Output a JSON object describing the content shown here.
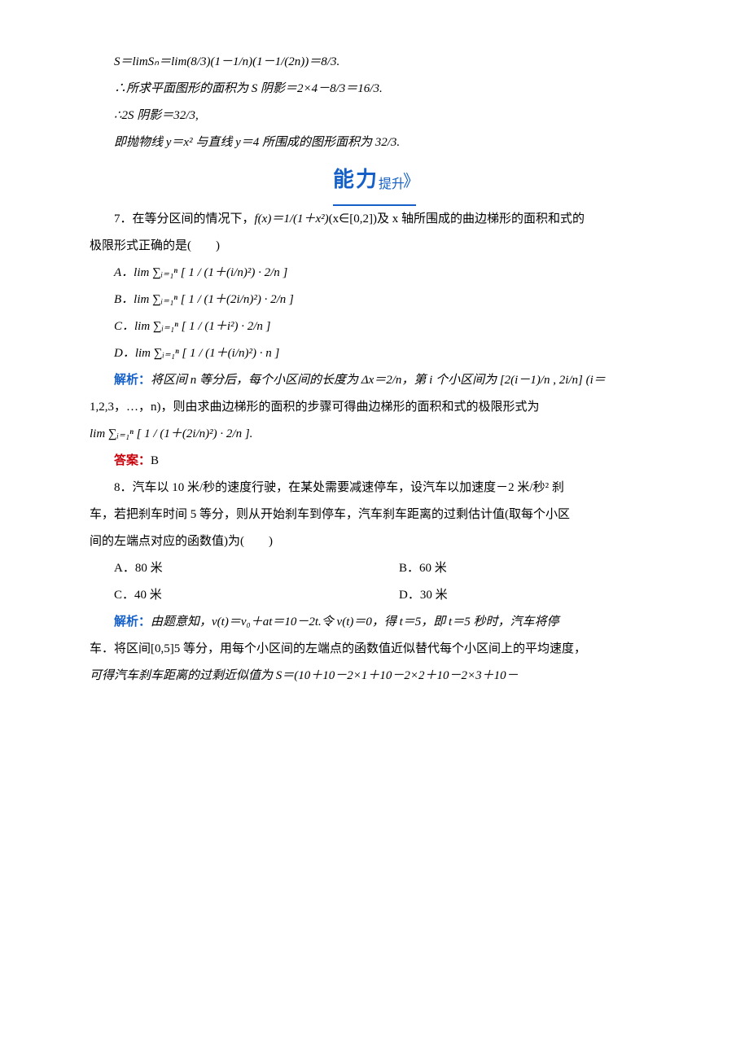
{
  "line1": "S＝limSₙ＝lim(8/3)(1－1/n)(1－1/(2n))＝8/3.",
  "line2": "∴所求平面图形的面积为 S 阴影＝2×4－8/3＝16/3.",
  "line3": "∴2S 阴影＝32/3,",
  "line4": "即抛物线 y＝x² 与直线 y＝4 所围成的图形面积为 32/3.",
  "banner_big": "能力",
  "banner_small": "提升",
  "q7_intro_a": "7．在等分区间的情况下，",
  "q7_intro_b": "f(x)＝1/(1＋x²)",
  "q7_intro_c": "(x∈[0,2])及 x 轴所围成的曲边梯形的面积和式的",
  "q7_intro_d": "极限形式正确的是(　　)",
  "q7_A": "A．lim ∑ᵢ₌₁ⁿ [ 1 / (1＋(i/n)²) · 2/n ]",
  "q7_B": "B．lim ∑ᵢ₌₁ⁿ [ 1 / (1＋(2i/n)²) · 2/n ]",
  "q7_C": "C．lim ∑ᵢ₌₁ⁿ [ 1 / (1＋i²) · 2/n ]",
  "q7_D": "D．lim ∑ᵢ₌₁ⁿ [ 1 / (1＋(i/n)²) · n ]",
  "q7_sol_label": "解析：",
  "q7_sol_a": "将区间 n 等分后，每个小区间的长度为 Δx＝2/n，第 i 个小区间为 [2(i－1)/n , 2i/n] (i＝",
  "q7_sol_b": "1,2,3，…，n)，则由求曲边梯形的面积的步骤可得曲边梯形的面积和式的极限形式为",
  "q7_sol_c": "lim ∑ᵢ₌₁ⁿ [ 1 / (1＋(2i/n)²) · 2/n ].",
  "q7_ans_label": "答案：",
  "q7_ans": "B",
  "q8_a": "8．汽车以 10 米/秒的速度行驶，在某处需要减速停车，设汽车以加速度－2 米/秒² 刹",
  "q8_b": "车，若把刹车时间 5 等分，则从开始刹车到停车，汽车刹车距离的过剩估计值(取每个小区",
  "q8_c": "间的左端点对应的函数值)为(　　)",
  "q8_A": "A．80 米",
  "q8_B": "B．60 米",
  "q8_C": "C．40 米",
  "q8_D": "D．30 米",
  "q8_sol_label": "解析：",
  "q8_sol_a": "由题意知，v(t)＝v₀＋at＝10－2t.令 v(t)＝0，得 t＝5，即 t＝5 秒时，汽车将停",
  "q8_sol_b": "车．将区间[0,5]5 等分，用每个小区间的左端点的函数值近似替代每个小区间上的平均速度，",
  "q8_sol_c": "可得汽车刹车距离的过剩近似值为 S＝(10＋10－2×1＋10－2×2＋10－2×3＋10－"
}
